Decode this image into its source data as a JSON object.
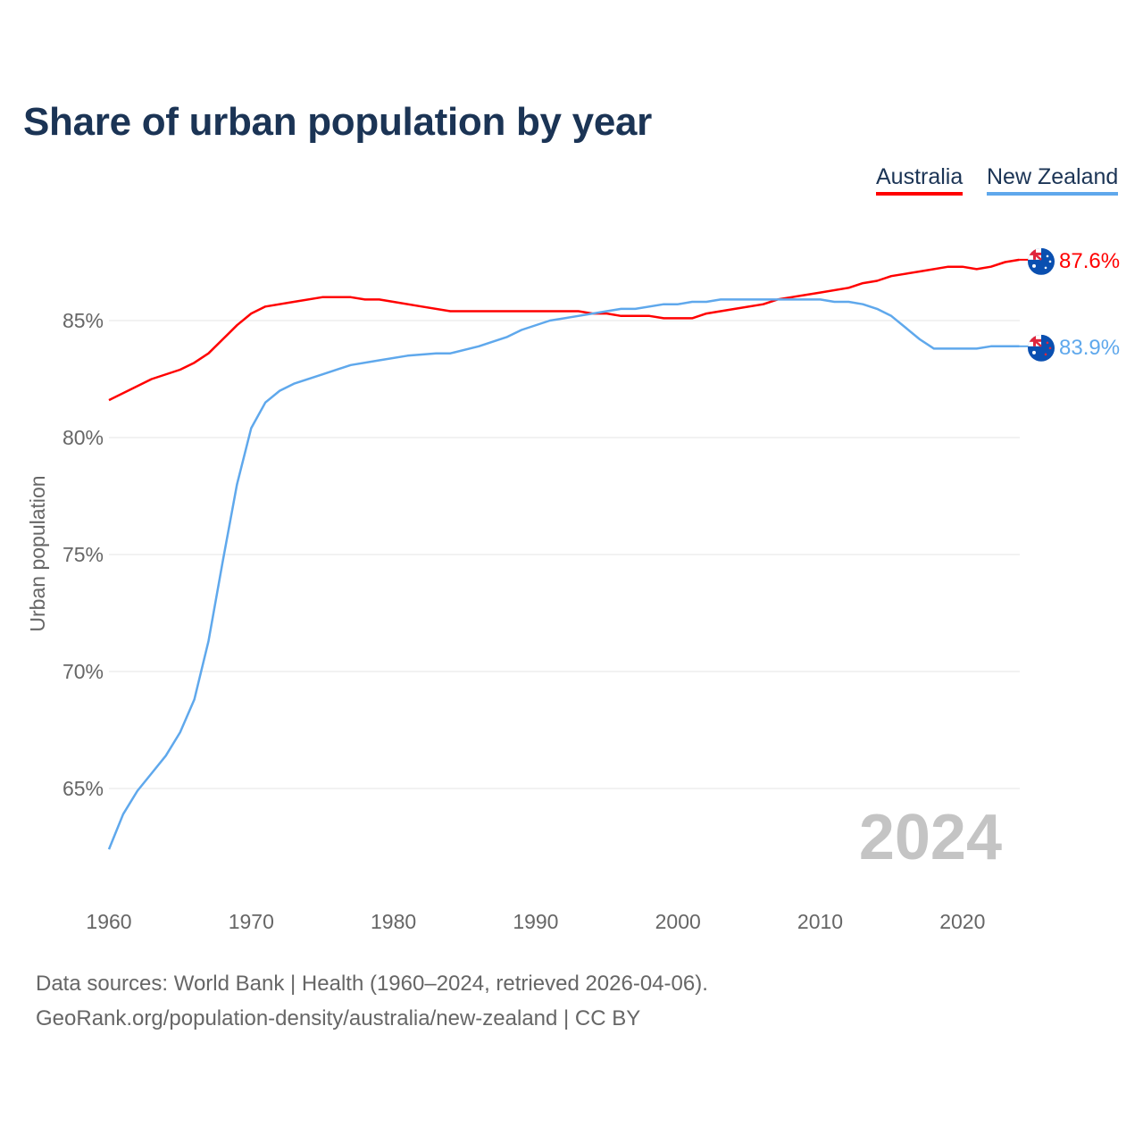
{
  "title": "Share of urban population by year",
  "legend": [
    {
      "label": "Australia",
      "color": "#ff0000"
    },
    {
      "label": "New Zealand",
      "color": "#5fa8ec"
    }
  ],
  "year_watermark": "2024",
  "footer": {
    "line1": "Data sources: World Bank | Health (1960–2024, retrieved 2026-04-06).",
    "line2": "GeoRank.org/population-density/australia/new-zealand | CC BY"
  },
  "chart_data": {
    "type": "line",
    "title": "Share of urban population by year",
    "xlabel": "",
    "ylabel": "Urban population",
    "xlim": [
      1960,
      2024
    ],
    "ylim": [
      62,
      88
    ],
    "x_ticks": [
      1960,
      1970,
      1980,
      1990,
      2000,
      2010,
      2020
    ],
    "y_ticks": [
      65,
      70,
      75,
      80,
      85
    ],
    "y_tick_labels": [
      "65%",
      "70%",
      "75%",
      "80%",
      "85%"
    ],
    "grid": true,
    "legend_position": "top-right",
    "series": [
      {
        "name": "Australia",
        "color": "#ff0000",
        "end_label": "87.6%",
        "flag": "australia-flag",
        "points": [
          [
            1960,
            81.6
          ],
          [
            1963,
            82.5
          ],
          [
            1965,
            82.9
          ],
          [
            1966,
            83.2
          ],
          [
            1967,
            83.6
          ],
          [
            1968,
            84.2
          ],
          [
            1969,
            84.8
          ],
          [
            1970,
            85.3
          ],
          [
            1971,
            85.6
          ],
          [
            1973,
            85.8
          ],
          [
            1975,
            86.0
          ],
          [
            1977,
            86.0
          ],
          [
            1978,
            85.9
          ],
          [
            1979,
            85.9
          ],
          [
            1980,
            85.8
          ],
          [
            1982,
            85.6
          ],
          [
            1984,
            85.4
          ],
          [
            1993,
            85.4
          ],
          [
            1994,
            85.3
          ],
          [
            1995,
            85.3
          ],
          [
            1996,
            85.2
          ],
          [
            1998,
            85.2
          ],
          [
            1999,
            85.1
          ],
          [
            2001,
            85.1
          ],
          [
            2002,
            85.3
          ],
          [
            2004,
            85.5
          ],
          [
            2006,
            85.7
          ],
          [
            2007,
            85.9
          ],
          [
            2010,
            86.2
          ],
          [
            2012,
            86.4
          ],
          [
            2013,
            86.6
          ],
          [
            2014,
            86.7
          ],
          [
            2015,
            86.9
          ],
          [
            2017,
            87.1
          ],
          [
            2019,
            87.3
          ],
          [
            2020,
            87.3
          ],
          [
            2021,
            87.2
          ],
          [
            2022,
            87.3
          ],
          [
            2023,
            87.5
          ],
          [
            2024,
            87.6
          ]
        ]
      },
      {
        "name": "New Zealand",
        "color": "#5fa8ec",
        "end_label": "83.9%",
        "flag": "new-zealand-flag",
        "points": [
          [
            1960,
            62.4
          ],
          [
            1961,
            63.9
          ],
          [
            1962,
            64.9
          ],
          [
            1963,
            65.65
          ],
          [
            1964,
            66.4
          ],
          [
            1965,
            67.4
          ],
          [
            1966,
            68.8
          ],
          [
            1967,
            71.3
          ],
          [
            1968,
            74.7
          ],
          [
            1969,
            78.0
          ],
          [
            1970,
            80.4
          ],
          [
            1971,
            81.5
          ],
          [
            1972,
            82.0
          ],
          [
            1973,
            82.3
          ],
          [
            1975,
            82.7
          ],
          [
            1977,
            83.1
          ],
          [
            1979,
            83.3
          ],
          [
            1981,
            83.5
          ],
          [
            1983,
            83.6
          ],
          [
            1984,
            83.6
          ],
          [
            1986,
            83.9
          ],
          [
            1988,
            84.3
          ],
          [
            1989,
            84.6
          ],
          [
            1991,
            85.0
          ],
          [
            1993,
            85.2
          ],
          [
            1995,
            85.4
          ],
          [
            1996,
            85.5
          ],
          [
            1997,
            85.5
          ],
          [
            1999,
            85.7
          ],
          [
            2000,
            85.7
          ],
          [
            2001,
            85.8
          ],
          [
            2002,
            85.8
          ],
          [
            2003,
            85.9
          ],
          [
            2010,
            85.9
          ],
          [
            2011,
            85.8
          ],
          [
            2012,
            85.8
          ],
          [
            2013,
            85.7
          ],
          [
            2014,
            85.5
          ],
          [
            2015,
            85.2
          ],
          [
            2016,
            84.7
          ],
          [
            2017,
            84.2
          ],
          [
            2018,
            83.8
          ],
          [
            2021,
            83.8
          ],
          [
            2022,
            83.9
          ],
          [
            2024,
            83.9
          ]
        ]
      }
    ]
  }
}
